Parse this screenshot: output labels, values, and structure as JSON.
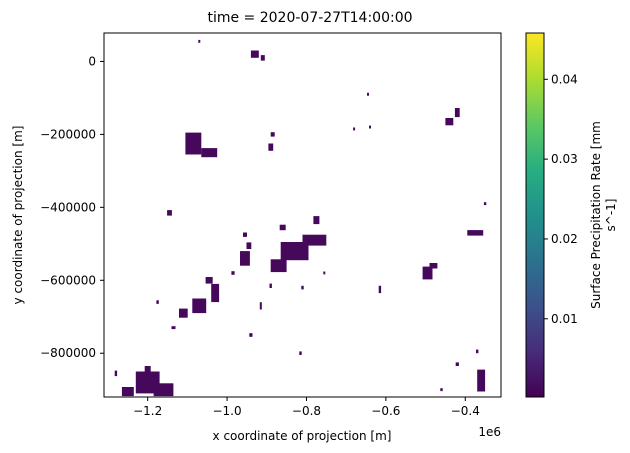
{
  "chart_data": {
    "type": "heatmap",
    "title": "time = 2020-07-27T14:00:00",
    "xlabel": "x coordinate of projection [m]",
    "ylabel": "y coordinate of projection [m]",
    "x_offset_label": "1e6",
    "xlim": [
      -1.31,
      -0.31
    ],
    "ylim": [
      -920000,
      78000
    ],
    "x_ticks": [
      {
        "value": -1.2,
        "label": "−1.2"
      },
      {
        "value": -1.0,
        "label": "−1.0"
      },
      {
        "value": -0.8,
        "label": "−0.8"
      },
      {
        "value": -0.6,
        "label": "−0.6"
      },
      {
        "value": -0.4,
        "label": "−0.4"
      }
    ],
    "y_ticks": [
      {
        "value": 0,
        "label": "0"
      },
      {
        "value": -200000,
        "label": "−200000"
      },
      {
        "value": -400000,
        "label": "−400000"
      },
      {
        "value": -600000,
        "label": "−600000"
      },
      {
        "value": -800000,
        "label": "−800000"
      }
    ],
    "colorbar": {
      "label_line1": "Surface Precipitation Rate [mm",
      "label_line2": "s^-1]",
      "colormap": "viridis",
      "range": [
        0.0002,
        0.0458
      ],
      "ticks": [
        {
          "value": 0.01,
          "label": "0.01"
        },
        {
          "value": 0.02,
          "label": "0.02"
        },
        {
          "value": 0.03,
          "label": "0.03"
        },
        {
          "value": 0.04,
          "label": "0.04"
        }
      ]
    },
    "grid": false,
    "cell_color": "#45085a",
    "precip_regions": [
      {
        "x": -1.085,
        "y": -225000,
        "w": 0.04,
        "h": 60000
      },
      {
        "x": -1.045,
        "y": -250000,
        "w": 0.04,
        "h": 25000
      },
      {
        "x": -0.83,
        "y": -520000,
        "w": 0.07,
        "h": 50000
      },
      {
        "x": -0.78,
        "y": -490000,
        "w": 0.06,
        "h": 30000
      },
      {
        "x": -0.87,
        "y": -560000,
        "w": 0.04,
        "h": 35000
      },
      {
        "x": -0.955,
        "y": -540000,
        "w": 0.025,
        "h": 40000
      },
      {
        "x": -0.945,
        "y": -505000,
        "w": 0.012,
        "h": 18000
      },
      {
        "x": -0.775,
        "y": -435000,
        "w": 0.015,
        "h": 22000
      },
      {
        "x": -1.07,
        "y": -670000,
        "w": 0.035,
        "h": 40000
      },
      {
        "x": -1.03,
        "y": -635000,
        "w": 0.02,
        "h": 50000
      },
      {
        "x": -1.11,
        "y": -690000,
        "w": 0.022,
        "h": 25000
      },
      {
        "x": -1.045,
        "y": -600000,
        "w": 0.018,
        "h": 18000
      },
      {
        "x": -1.2,
        "y": -880000,
        "w": 0.06,
        "h": 60000
      },
      {
        "x": -1.16,
        "y": -900000,
        "w": 0.05,
        "h": 35000
      },
      {
        "x": -1.25,
        "y": -905000,
        "w": 0.03,
        "h": 25000
      },
      {
        "x": -0.495,
        "y": -580000,
        "w": 0.025,
        "h": 35000
      },
      {
        "x": -0.48,
        "y": -560000,
        "w": 0.02,
        "h": 15000
      },
      {
        "x": -0.375,
        "y": -470000,
        "w": 0.04,
        "h": 15000
      },
      {
        "x": -0.36,
        "y": -875000,
        "w": 0.02,
        "h": 60000
      },
      {
        "x": -0.44,
        "y": -165000,
        "w": 0.02,
        "h": 20000
      },
      {
        "x": -0.42,
        "y": -140000,
        "w": 0.012,
        "h": 25000
      },
      {
        "x": -0.89,
        "y": -235000,
        "w": 0.012,
        "h": 20000
      },
      {
        "x": -0.885,
        "y": -200000,
        "w": 0.01,
        "h": 12000
      },
      {
        "x": -1.145,
        "y": -415000,
        "w": 0.012,
        "h": 15000
      },
      {
        "x": -0.93,
        "y": 20000,
        "w": 0.02,
        "h": 20000
      },
      {
        "x": -0.91,
        "y": 10000,
        "w": 0.01,
        "h": 15000
      },
      {
        "x": -0.86,
        "y": -455000,
        "w": 0.015,
        "h": 15000
      },
      {
        "x": -0.955,
        "y": -475000,
        "w": 0.01,
        "h": 12000
      },
      {
        "x": -1.2,
        "y": -845000,
        "w": 0.015,
        "h": 20000
      },
      {
        "x": -0.815,
        "y": -800000,
        "w": 0.006,
        "h": 10000
      },
      {
        "x": -0.915,
        "y": -670000,
        "w": 0.005,
        "h": 20000
      },
      {
        "x": -0.81,
        "y": -620000,
        "w": 0.006,
        "h": 10000
      },
      {
        "x": -0.615,
        "y": -625000,
        "w": 0.006,
        "h": 20000
      },
      {
        "x": -0.35,
        "y": -390000,
        "w": 0.006,
        "h": 8000
      },
      {
        "x": -0.37,
        "y": -795000,
        "w": 0.006,
        "h": 10000
      },
      {
        "x": -0.42,
        "y": -830000,
        "w": 0.008,
        "h": 10000
      },
      {
        "x": -1.28,
        "y": -855000,
        "w": 0.006,
        "h": 15000
      },
      {
        "x": -1.175,
        "y": -660000,
        "w": 0.006,
        "h": 10000
      },
      {
        "x": -1.135,
        "y": -730000,
        "w": 0.01,
        "h": 8000
      },
      {
        "x": -0.46,
        "y": -900000,
        "w": 0.006,
        "h": 8000
      },
      {
        "x": -0.645,
        "y": -90000,
        "w": 0.005,
        "h": 8000
      },
      {
        "x": -0.64,
        "y": -180000,
        "w": 0.005,
        "h": 8000
      },
      {
        "x": -0.985,
        "y": -580000,
        "w": 0.008,
        "h": 10000
      },
      {
        "x": -0.68,
        "y": -185000,
        "w": 0.005,
        "h": 8000
      },
      {
        "x": -1.07,
        "y": 55000,
        "w": 0.005,
        "h": 8000
      },
      {
        "x": -0.94,
        "y": -750000,
        "w": 0.008,
        "h": 10000
      },
      {
        "x": -0.755,
        "y": -580000,
        "w": 0.005,
        "h": 8000
      },
      {
        "x": -0.89,
        "y": -615000,
        "w": 0.006,
        "h": 12000
      }
    ]
  }
}
